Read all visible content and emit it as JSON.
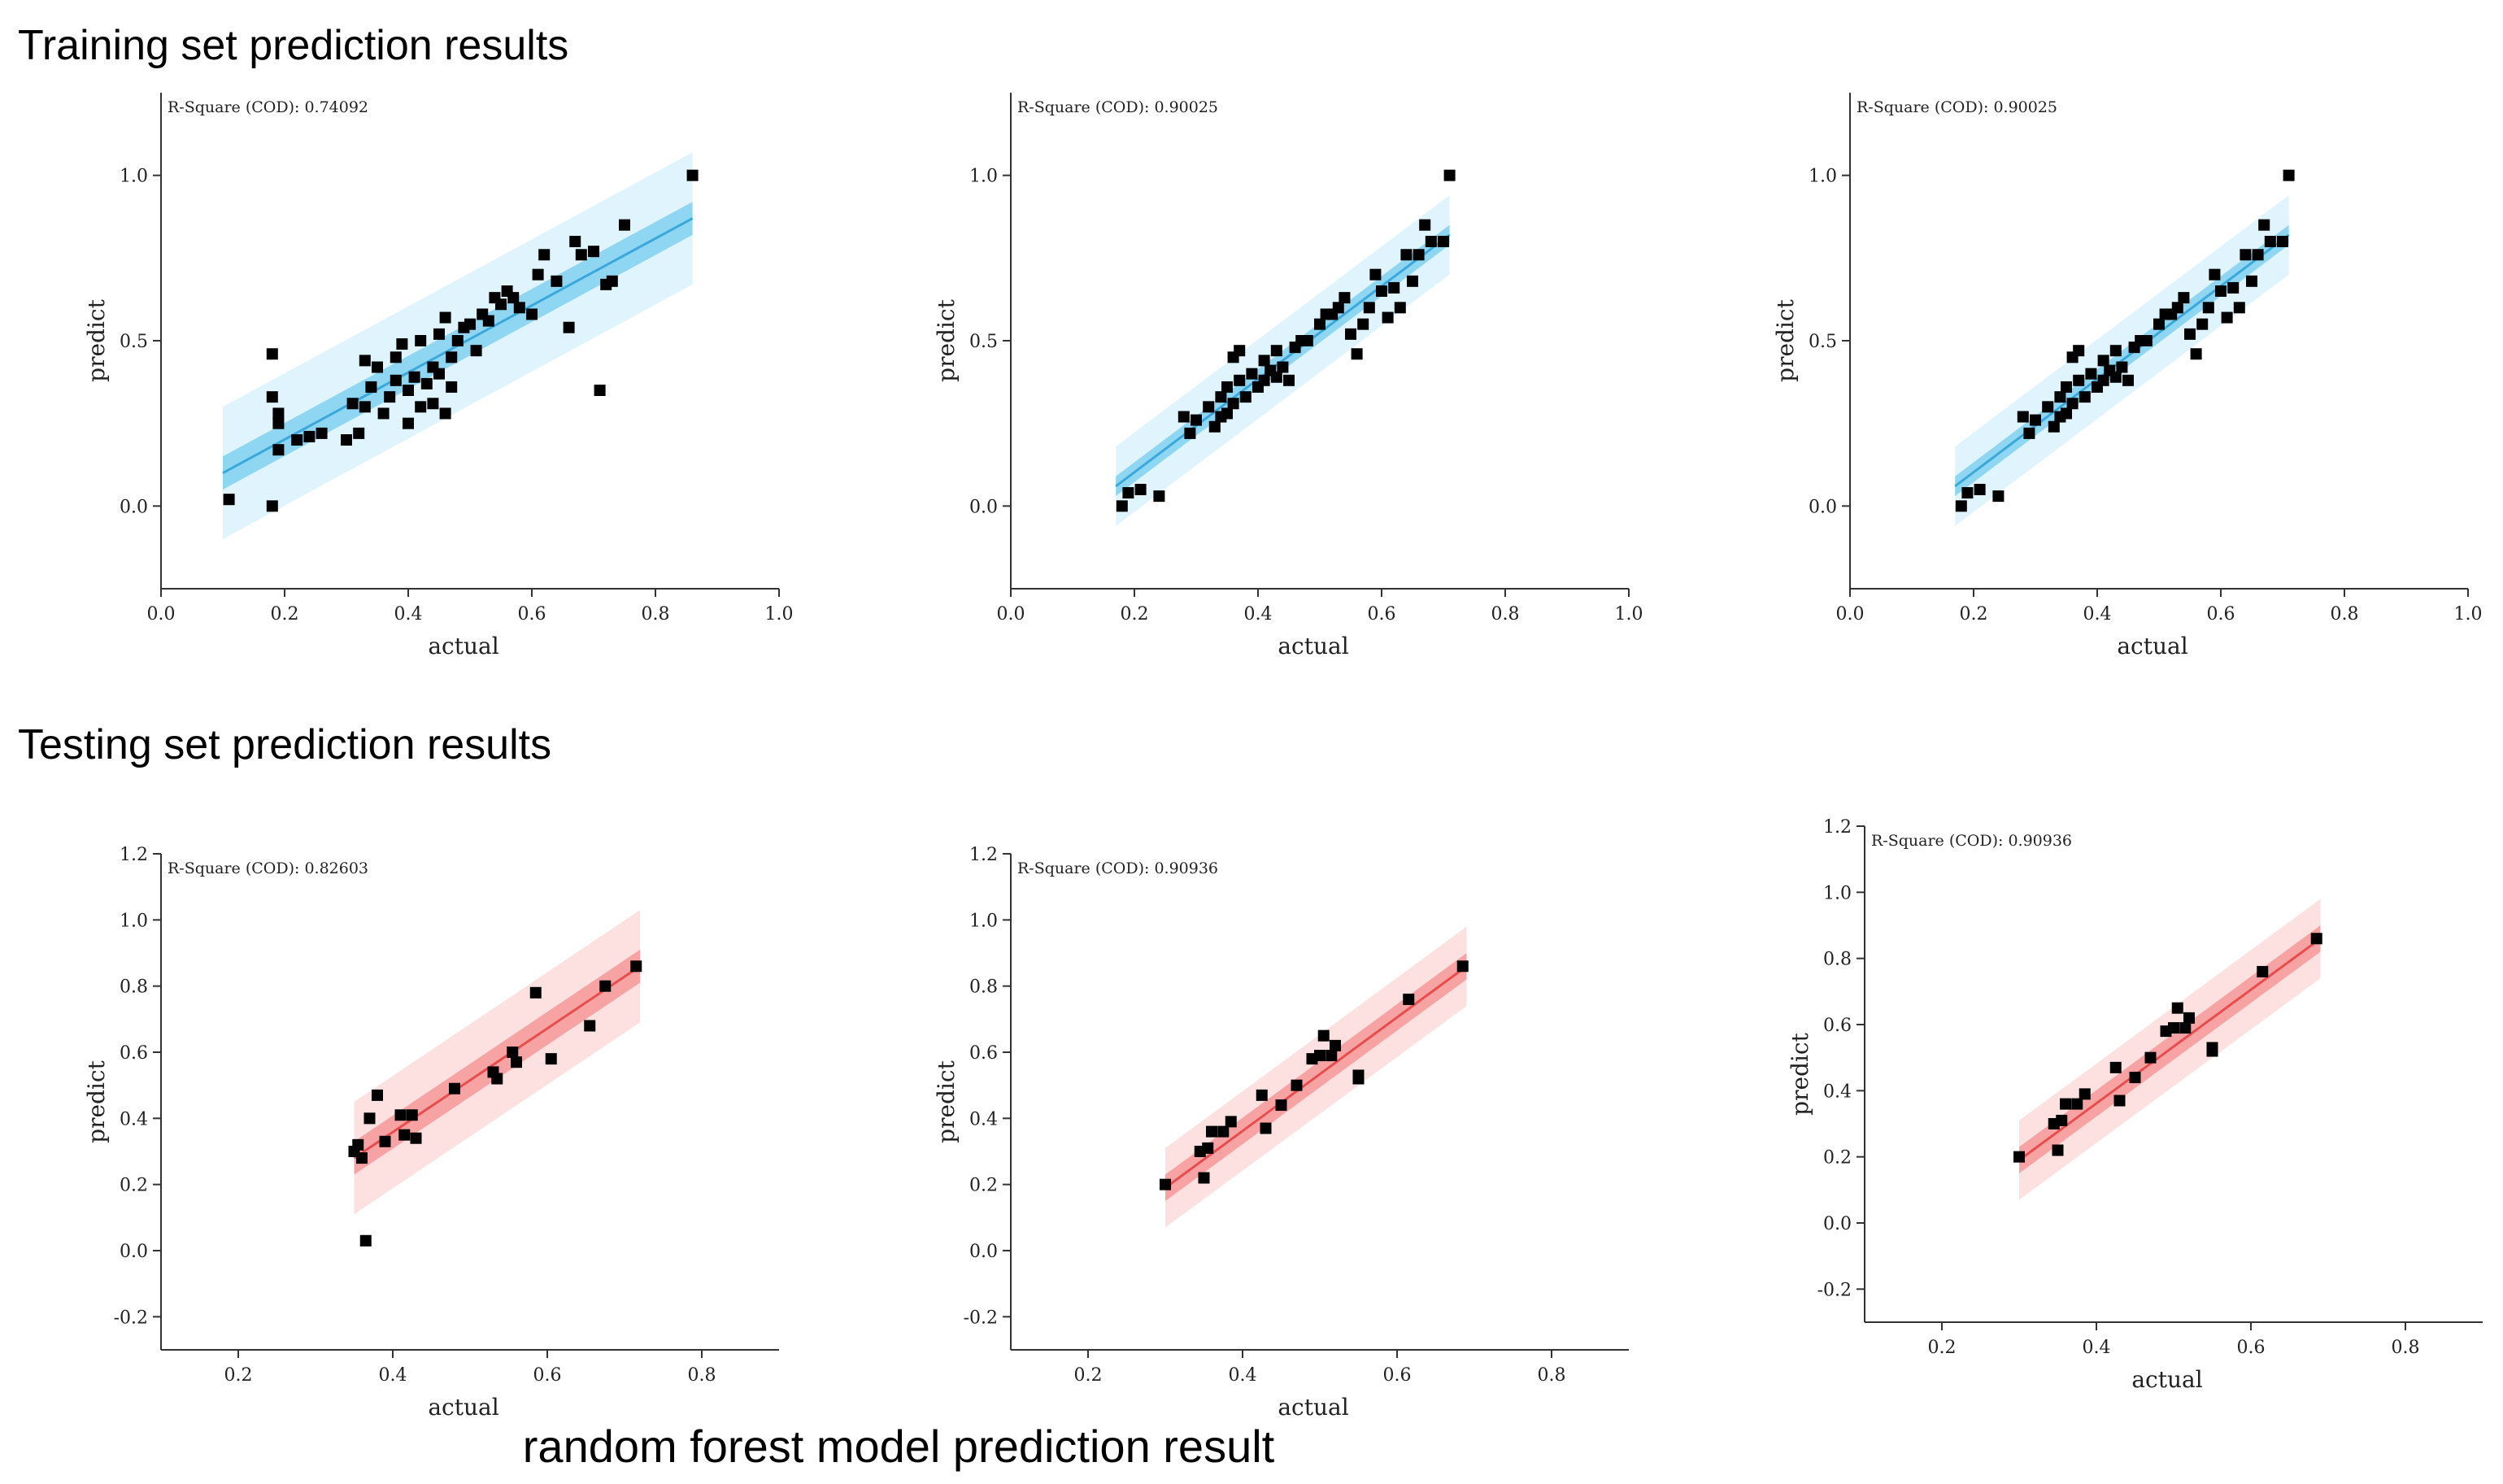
{
  "headings": {
    "train": "Training set prediction results",
    "test": "Testing set prediction results",
    "caption": "random forest model  prediction result"
  },
  "colors": {
    "train_line": "#3aa8dc",
    "train_band_inner": "#8fd6f2",
    "train_band_outer": "#dff4fd",
    "test_line": "#e84c4c",
    "test_band_inner": "#f8a3a3",
    "test_band_outer": "#fde1e1",
    "marker": "#000000"
  },
  "chart_data": [
    {
      "type": "scatter",
      "id": "train-1",
      "xlabel": "actual",
      "ylabel": "predict",
      "annotation": "R-Square (COD): 0.74092",
      "xlim": [
        0,
        1.0
      ],
      "ylim": [
        -0.25,
        1.25
      ],
      "xticks": [
        "0.0",
        "0.2",
        "0.4",
        "0.6",
        "0.8",
        "1.0"
      ],
      "yticks": [
        "0.0",
        "0.5",
        "1.0"
      ],
      "fit": {
        "x0": 0.1,
        "y0": 0.1,
        "x1": 0.86,
        "y1": 0.87,
        "ci": 0.05,
        "pi": 0.2
      },
      "points": [
        [
          0.11,
          0.02
        ],
        [
          0.18,
          0.0
        ],
        [
          0.18,
          0.46
        ],
        [
          0.18,
          0.33
        ],
        [
          0.19,
          0.28
        ],
        [
          0.19,
          0.25
        ],
        [
          0.19,
          0.17
        ],
        [
          0.22,
          0.2
        ],
        [
          0.24,
          0.21
        ],
        [
          0.26,
          0.22
        ],
        [
          0.3,
          0.2
        ],
        [
          0.31,
          0.31
        ],
        [
          0.32,
          0.22
        ],
        [
          0.33,
          0.3
        ],
        [
          0.33,
          0.44
        ],
        [
          0.34,
          0.36
        ],
        [
          0.35,
          0.42
        ],
        [
          0.36,
          0.28
        ],
        [
          0.37,
          0.33
        ],
        [
          0.38,
          0.38
        ],
        [
          0.38,
          0.45
        ],
        [
          0.39,
          0.49
        ],
        [
          0.4,
          0.35
        ],
        [
          0.4,
          0.25
        ],
        [
          0.41,
          0.39
        ],
        [
          0.42,
          0.5
        ],
        [
          0.42,
          0.3
        ],
        [
          0.43,
          0.37
        ],
        [
          0.44,
          0.31
        ],
        [
          0.44,
          0.42
        ],
        [
          0.45,
          0.4
        ],
        [
          0.45,
          0.52
        ],
        [
          0.46,
          0.28
        ],
        [
          0.46,
          0.57
        ],
        [
          0.47,
          0.45
        ],
        [
          0.47,
          0.36
        ],
        [
          0.48,
          0.5
        ],
        [
          0.49,
          0.54
        ],
        [
          0.5,
          0.55
        ],
        [
          0.51,
          0.47
        ],
        [
          0.52,
          0.58
        ],
        [
          0.53,
          0.56
        ],
        [
          0.54,
          0.63
        ],
        [
          0.55,
          0.61
        ],
        [
          0.56,
          0.65
        ],
        [
          0.57,
          0.63
        ],
        [
          0.58,
          0.6
        ],
        [
          0.6,
          0.58
        ],
        [
          0.61,
          0.7
        ],
        [
          0.62,
          0.76
        ],
        [
          0.64,
          0.68
        ],
        [
          0.66,
          0.54
        ],
        [
          0.67,
          0.8
        ],
        [
          0.68,
          0.76
        ],
        [
          0.7,
          0.77
        ],
        [
          0.71,
          0.35
        ],
        [
          0.72,
          0.67
        ],
        [
          0.73,
          0.68
        ],
        [
          0.75,
          0.85
        ],
        [
          0.86,
          1.0
        ]
      ]
    },
    {
      "type": "scatter",
      "id": "train-2",
      "xlabel": "actual",
      "ylabel": "predict",
      "annotation": "R-Square (COD): 0.90025",
      "xlim": [
        0,
        1.0
      ],
      "ylim": [
        -0.25,
        1.25
      ],
      "xticks": [
        "0.0",
        "0.2",
        "0.4",
        "0.6",
        "0.8",
        "1.0"
      ],
      "yticks": [
        "0.0",
        "0.5",
        "1.0"
      ],
      "fit": {
        "x0": 0.17,
        "y0": 0.06,
        "x1": 0.71,
        "y1": 0.82,
        "ci": 0.03,
        "pi": 0.12
      },
      "points": [
        [
          0.18,
          0.0
        ],
        [
          0.19,
          0.04
        ],
        [
          0.21,
          0.05
        ],
        [
          0.24,
          0.03
        ],
        [
          0.28,
          0.27
        ],
        [
          0.29,
          0.22
        ],
        [
          0.3,
          0.26
        ],
        [
          0.32,
          0.3
        ],
        [
          0.33,
          0.24
        ],
        [
          0.34,
          0.27
        ],
        [
          0.34,
          0.33
        ],
        [
          0.35,
          0.28
        ],
        [
          0.35,
          0.36
        ],
        [
          0.36,
          0.31
        ],
        [
          0.36,
          0.45
        ],
        [
          0.37,
          0.38
        ],
        [
          0.37,
          0.47
        ],
        [
          0.38,
          0.33
        ],
        [
          0.39,
          0.4
        ],
        [
          0.4,
          0.36
        ],
        [
          0.41,
          0.44
        ],
        [
          0.41,
          0.38
        ],
        [
          0.42,
          0.41
        ],
        [
          0.43,
          0.39
        ],
        [
          0.43,
          0.47
        ],
        [
          0.44,
          0.42
        ],
        [
          0.45,
          0.38
        ],
        [
          0.46,
          0.48
        ],
        [
          0.47,
          0.5
        ],
        [
          0.48,
          0.5
        ],
        [
          0.5,
          0.55
        ],
        [
          0.51,
          0.58
        ],
        [
          0.52,
          0.58
        ],
        [
          0.53,
          0.6
        ],
        [
          0.54,
          0.63
        ],
        [
          0.55,
          0.52
        ],
        [
          0.56,
          0.46
        ],
        [
          0.57,
          0.55
        ],
        [
          0.58,
          0.6
        ],
        [
          0.59,
          0.7
        ],
        [
          0.6,
          0.65
        ],
        [
          0.61,
          0.57
        ],
        [
          0.62,
          0.66
        ],
        [
          0.63,
          0.6
        ],
        [
          0.64,
          0.76
        ],
        [
          0.65,
          0.68
        ],
        [
          0.66,
          0.76
        ],
        [
          0.67,
          0.85
        ],
        [
          0.68,
          0.8
        ],
        [
          0.7,
          0.8
        ],
        [
          0.71,
          1.0
        ]
      ]
    },
    {
      "type": "scatter",
      "id": "train-3",
      "xlabel": "actual",
      "ylabel": "predict",
      "annotation": "R-Square (COD): 0.90025",
      "xlim": [
        0,
        1.0
      ],
      "ylim": [
        -0.25,
        1.25
      ],
      "xticks": [
        "0.0",
        "0.2",
        "0.4",
        "0.6",
        "0.8",
        "1.0"
      ],
      "yticks": [
        "0.0",
        "0.5",
        "1.0"
      ],
      "fit": {
        "x0": 0.17,
        "y0": 0.06,
        "x1": 0.71,
        "y1": 0.82,
        "ci": 0.03,
        "pi": 0.12
      },
      "points": [
        [
          0.18,
          0.0
        ],
        [
          0.19,
          0.04
        ],
        [
          0.21,
          0.05
        ],
        [
          0.24,
          0.03
        ],
        [
          0.28,
          0.27
        ],
        [
          0.29,
          0.22
        ],
        [
          0.3,
          0.26
        ],
        [
          0.32,
          0.3
        ],
        [
          0.33,
          0.24
        ],
        [
          0.34,
          0.27
        ],
        [
          0.34,
          0.33
        ],
        [
          0.35,
          0.28
        ],
        [
          0.35,
          0.36
        ],
        [
          0.36,
          0.31
        ],
        [
          0.36,
          0.45
        ],
        [
          0.37,
          0.38
        ],
        [
          0.37,
          0.47
        ],
        [
          0.38,
          0.33
        ],
        [
          0.39,
          0.4
        ],
        [
          0.4,
          0.36
        ],
        [
          0.41,
          0.44
        ],
        [
          0.41,
          0.38
        ],
        [
          0.42,
          0.41
        ],
        [
          0.43,
          0.39
        ],
        [
          0.43,
          0.47
        ],
        [
          0.44,
          0.42
        ],
        [
          0.45,
          0.38
        ],
        [
          0.46,
          0.48
        ],
        [
          0.47,
          0.5
        ],
        [
          0.48,
          0.5
        ],
        [
          0.5,
          0.55
        ],
        [
          0.51,
          0.58
        ],
        [
          0.52,
          0.58
        ],
        [
          0.53,
          0.6
        ],
        [
          0.54,
          0.63
        ],
        [
          0.55,
          0.52
        ],
        [
          0.56,
          0.46
        ],
        [
          0.57,
          0.55
        ],
        [
          0.58,
          0.6
        ],
        [
          0.59,
          0.7
        ],
        [
          0.6,
          0.65
        ],
        [
          0.61,
          0.57
        ],
        [
          0.62,
          0.66
        ],
        [
          0.63,
          0.6
        ],
        [
          0.64,
          0.76
        ],
        [
          0.65,
          0.68
        ],
        [
          0.66,
          0.76
        ],
        [
          0.67,
          0.85
        ],
        [
          0.68,
          0.8
        ],
        [
          0.7,
          0.8
        ],
        [
          0.71,
          1.0
        ]
      ]
    },
    {
      "type": "scatter",
      "id": "test-1",
      "xlabel": "actual",
      "ylabel": "predict",
      "annotation": "R-Square (COD): 0.82603",
      "xlim": [
        0.1,
        0.9
      ],
      "ylim": [
        -0.3,
        1.2
      ],
      "xticks": [
        "0.2",
        "0.4",
        "0.6",
        "0.8"
      ],
      "yticks": [
        "-0.2",
        "0.0",
        "0.2",
        "0.4",
        "0.6",
        "0.8",
        "1.0",
        "1.2"
      ],
      "fit": {
        "x0": 0.35,
        "y0": 0.28,
        "x1": 0.72,
        "y1": 0.86,
        "ci": 0.05,
        "pi": 0.17
      },
      "points": [
        [
          0.35,
          0.3
        ],
        [
          0.355,
          0.32
        ],
        [
          0.36,
          0.28
        ],
        [
          0.365,
          0.03
        ],
        [
          0.37,
          0.4
        ],
        [
          0.38,
          0.47
        ],
        [
          0.39,
          0.33
        ],
        [
          0.41,
          0.41
        ],
        [
          0.415,
          0.35
        ],
        [
          0.425,
          0.41
        ],
        [
          0.43,
          0.34
        ],
        [
          0.48,
          0.49
        ],
        [
          0.53,
          0.54
        ],
        [
          0.535,
          0.52
        ],
        [
          0.555,
          0.6
        ],
        [
          0.56,
          0.57
        ],
        [
          0.585,
          0.78
        ],
        [
          0.605,
          0.58
        ],
        [
          0.655,
          0.68
        ],
        [
          0.675,
          0.8
        ],
        [
          0.715,
          0.86
        ]
      ]
    },
    {
      "type": "scatter",
      "id": "test-2",
      "xlabel": "actual",
      "ylabel": "predict",
      "annotation": "R-Square (COD): 0.90936",
      "xlim": [
        0.1,
        0.9
      ],
      "ylim": [
        -0.3,
        1.2
      ],
      "xticks": [
        "0.2",
        "0.4",
        "0.6",
        "0.8"
      ],
      "yticks": [
        "-0.2",
        "0.0",
        "0.2",
        "0.4",
        "0.6",
        "0.8",
        "1.0",
        "1.2"
      ],
      "fit": {
        "x0": 0.3,
        "y0": 0.19,
        "x1": 0.69,
        "y1": 0.86,
        "ci": 0.04,
        "pi": 0.12
      },
      "points": [
        [
          0.3,
          0.2
        ],
        [
          0.345,
          0.3
        ],
        [
          0.35,
          0.22
        ],
        [
          0.355,
          0.31
        ],
        [
          0.36,
          0.36
        ],
        [
          0.375,
          0.36
        ],
        [
          0.385,
          0.39
        ],
        [
          0.425,
          0.47
        ],
        [
          0.43,
          0.37
        ],
        [
          0.45,
          0.44
        ],
        [
          0.47,
          0.5
        ],
        [
          0.49,
          0.58
        ],
        [
          0.5,
          0.59
        ],
        [
          0.505,
          0.65
        ],
        [
          0.515,
          0.59
        ],
        [
          0.52,
          0.62
        ],
        [
          0.55,
          0.52
        ],
        [
          0.55,
          0.53
        ],
        [
          0.615,
          0.76
        ],
        [
          0.685,
          0.86
        ]
      ]
    },
    {
      "type": "scatter",
      "id": "test-3",
      "xlabel": "actual",
      "ylabel": "predict",
      "annotation": "R-Square (COD): 0.90936",
      "xlim": [
        0.1,
        0.9
      ],
      "ylim": [
        -0.3,
        1.2
      ],
      "xticks": [
        "0.2",
        "0.4",
        "0.6",
        "0.8"
      ],
      "yticks": [
        "-0.2",
        "0.0",
        "0.2",
        "0.4",
        "0.6",
        "0.8",
        "1.0",
        "1.2"
      ],
      "fit": {
        "x0": 0.3,
        "y0": 0.19,
        "x1": 0.69,
        "y1": 0.86,
        "ci": 0.04,
        "pi": 0.12
      },
      "points": [
        [
          0.3,
          0.2
        ],
        [
          0.345,
          0.3
        ],
        [
          0.35,
          0.22
        ],
        [
          0.355,
          0.31
        ],
        [
          0.36,
          0.36
        ],
        [
          0.375,
          0.36
        ],
        [
          0.385,
          0.39
        ],
        [
          0.425,
          0.47
        ],
        [
          0.43,
          0.37
        ],
        [
          0.45,
          0.44
        ],
        [
          0.47,
          0.5
        ],
        [
          0.49,
          0.58
        ],
        [
          0.5,
          0.59
        ],
        [
          0.505,
          0.65
        ],
        [
          0.515,
          0.59
        ],
        [
          0.52,
          0.62
        ],
        [
          0.55,
          0.52
        ],
        [
          0.55,
          0.53
        ],
        [
          0.615,
          0.76
        ],
        [
          0.685,
          0.86
        ]
      ]
    }
  ]
}
